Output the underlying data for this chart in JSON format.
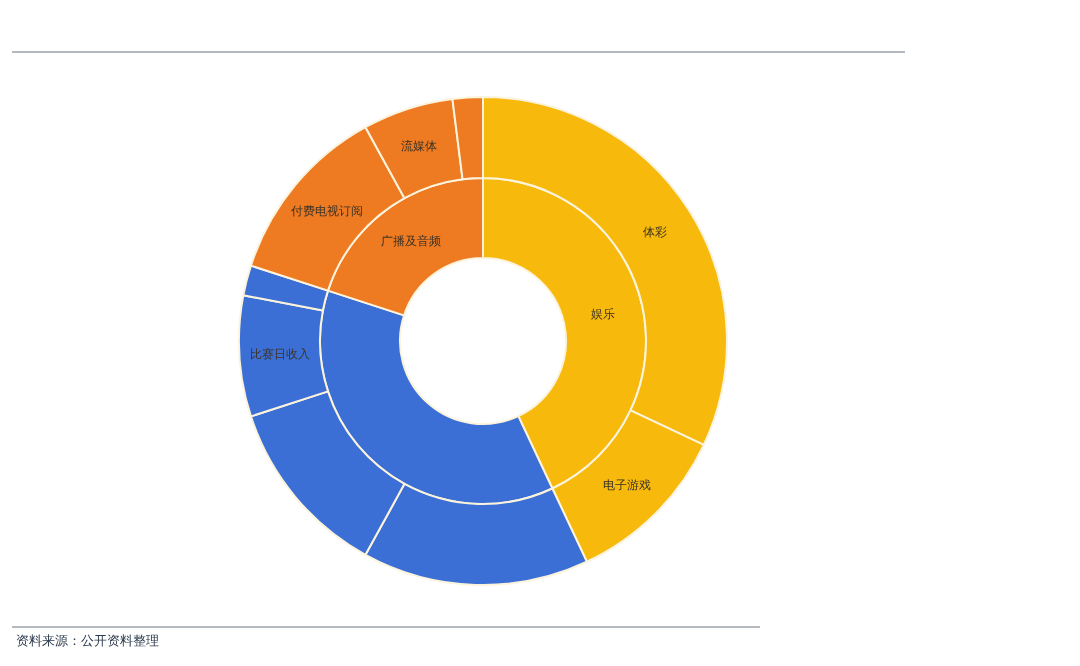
{
  "chart_data": [
    {
      "type": "donut",
      "categories": [
        "娱乐",
        null,
        "广播及音频"
      ],
      "values": [
        43,
        37,
        20
      ],
      "colors": [
        "#f6b90c",
        "#3b6fd6",
        "#ee7a22"
      ],
      "annotations": [
        "资料来源：公开资料整理"
      ]
    },
    {
      "type": "donut",
      "categories": [
        "体彩",
        "电子游戏",
        null,
        null,
        "比赛日收入",
        null,
        "付费电视订阅",
        "流媒体",
        null
      ],
      "values": [
        32,
        11,
        15,
        12,
        8,
        2,
        12,
        6,
        2
      ],
      "colors": [
        "#f6b90c",
        "#f6b90c",
        "#3b6fd6",
        "#3b6fd6",
        "#3b6fd6",
        "#3b6fd6",
        "#ee7a22",
        "#ee7a22",
        "#ee7a22"
      ]
    }
  ]
}
